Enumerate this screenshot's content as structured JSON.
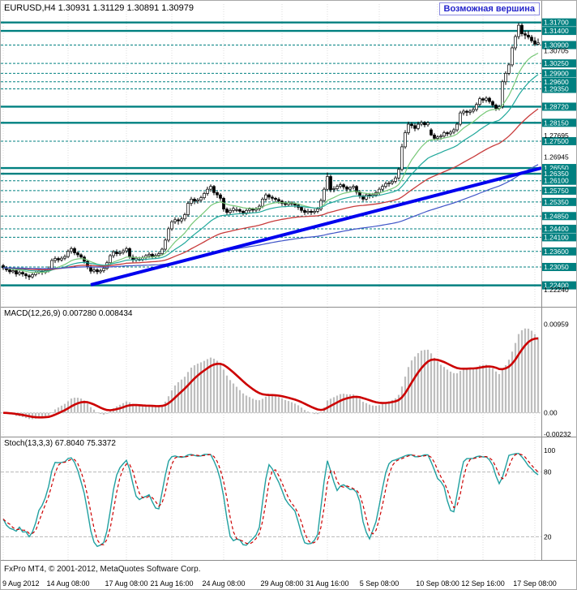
{
  "header": {
    "title": "EURUSD,H4 1.30931 1.31129 1.30891 1.30979"
  },
  "annotation": {
    "text": "Возможная вершина"
  },
  "footer": {
    "copyright": "FxPro MT4, © 2001-2012, MetaQuotes Software Corp."
  },
  "colors": {
    "level": "#008080",
    "bull": "#FFFFFF",
    "bear": "#000000",
    "wick": "#000000",
    "trendline": "#0000EE",
    "macd_hist": "#BEBEBE",
    "macd_signal": "#CC0000",
    "stoch_main": "#20A0A0",
    "stoch_signal": "#CC0000",
    "grid": "#DCDCDC",
    "annotation": "#2424CC"
  },
  "chart_data": {
    "type": "candlestick",
    "title": "EURUSD,H4",
    "symbol": "EURUSD",
    "timeframe": "H4",
    "time_ticks": [
      {
        "text": "9 Aug 2012",
        "bar": 0
      },
      {
        "text": "14 Aug 08:00",
        "bar": 20
      },
      {
        "text": "17 Aug 08:00",
        "bar": 38
      },
      {
        "text": "21 Aug 16:00",
        "bar": 52
      },
      {
        "text": "24 Aug 08:00",
        "bar": 68
      },
      {
        "text": "29 Aug 08:00",
        "bar": 86
      },
      {
        "text": "31 Aug 16:00",
        "bar": 100
      },
      {
        "text": "5 Sep 08:00",
        "bar": 116
      },
      {
        "text": "10 Sep 08:00",
        "bar": 134
      },
      {
        "text": "12 Sep 16:00",
        "bar": 148
      },
      {
        "text": "17 Sep 08:00",
        "bar": 164
      }
    ],
    "main": {
      "ylim": [
        1.217,
        1.3235
      ],
      "axis_ticks": [
        1.30705,
        1.27695,
        1.26945,
        1.2224
      ],
      "levels_solid": [
        1.317,
        1.314,
        1.2872,
        1.2815,
        1.2655,
        1.2635,
        1.224
      ],
      "levels_dashed": [
        1.309,
        1.3025,
        1.299,
        1.296,
        1.2935,
        1.275,
        1.261,
        1.2575,
        1.2535,
        1.2485,
        1.244,
        1.241,
        1.236,
        1.2305
      ],
      "trendline": {
        "bar1": 27,
        "price1": 1.2242,
        "bar2": 167,
        "price2": 1.2658
      },
      "moving_averages": [
        {
          "period": 13,
          "color": "#78C878",
          "width": 1.2
        },
        {
          "period": 26,
          "color": "#20A89B",
          "width": 1.2
        },
        {
          "period": 55,
          "color": "#C83C3C",
          "width": 1.3
        },
        {
          "period": 144,
          "color": "#4055C8",
          "width": 1.2
        }
      ],
      "ohlc": [
        [
          1.231,
          1.2316,
          1.2294,
          1.2302
        ],
        [
          1.2302,
          1.2308,
          1.2288,
          1.2295
        ],
        [
          1.2295,
          1.2301,
          1.228,
          1.2288
        ],
        [
          1.2288,
          1.2298,
          1.2282,
          1.2292
        ],
        [
          1.2292,
          1.2296,
          1.2271,
          1.228
        ],
        [
          1.228,
          1.2292,
          1.2274,
          1.2286
        ],
        [
          1.2286,
          1.2291,
          1.2271,
          1.228
        ],
        [
          1.228,
          1.2285,
          1.2263,
          1.2274
        ],
        [
          1.2274,
          1.228,
          1.2259,
          1.227
        ],
        [
          1.227,
          1.2285,
          1.2264,
          1.2278
        ],
        [
          1.2278,
          1.2292,
          1.2272,
          1.2285
        ],
        [
          1.2285,
          1.2297,
          1.2279,
          1.229
        ],
        [
          1.229,
          1.2296,
          1.2277,
          1.2286
        ],
        [
          1.2286,
          1.2299,
          1.228,
          1.2292
        ],
        [
          1.2292,
          1.2307,
          1.2286,
          1.23
        ],
        [
          1.23,
          1.2335,
          1.2295,
          1.2328
        ],
        [
          1.2328,
          1.2343,
          1.2319,
          1.2335
        ],
        [
          1.2335,
          1.2341,
          1.2321,
          1.233
        ],
        [
          1.233,
          1.2343,
          1.2324,
          1.2336
        ],
        [
          1.2336,
          1.2349,
          1.2329,
          1.2342
        ],
        [
          1.2342,
          1.2367,
          1.2336,
          1.236
        ],
        [
          1.236,
          1.2377,
          1.2352,
          1.237
        ],
        [
          1.237,
          1.2376,
          1.2347,
          1.2355
        ],
        [
          1.2355,
          1.2361,
          1.2339,
          1.2348
        ],
        [
          1.2348,
          1.2353,
          1.2333,
          1.234
        ],
        [
          1.234,
          1.2346,
          1.2317,
          1.2325
        ],
        [
          1.2325,
          1.2331,
          1.2297,
          1.2305
        ],
        [
          1.2305,
          1.2313,
          1.2281,
          1.229
        ],
        [
          1.229,
          1.2303,
          1.2283,
          1.2295
        ],
        [
          1.2295,
          1.2301,
          1.2279,
          1.2288
        ],
        [
          1.2288,
          1.2299,
          1.2281,
          1.2292
        ],
        [
          1.2292,
          1.2307,
          1.2285,
          1.23
        ],
        [
          1.23,
          1.2327,
          1.2294,
          1.232
        ],
        [
          1.232,
          1.2351,
          1.2313,
          1.2345
        ],
        [
          1.2345,
          1.2365,
          1.2337,
          1.2358
        ],
        [
          1.2358,
          1.2367,
          1.2343,
          1.2352
        ],
        [
          1.2352,
          1.2363,
          1.2345,
          1.2356
        ],
        [
          1.2356,
          1.2369,
          1.2349,
          1.2362
        ],
        [
          1.2362,
          1.2377,
          1.2354,
          1.237
        ],
        [
          1.237,
          1.2375,
          1.2334,
          1.234
        ],
        [
          1.234,
          1.2349,
          1.2321,
          1.233
        ],
        [
          1.233,
          1.2343,
          1.2323,
          1.2336
        ],
        [
          1.2332,
          1.2341,
          1.2325,
          1.2332
        ],
        [
          1.2332,
          1.2345,
          1.2325,
          1.2338
        ],
        [
          1.2338,
          1.2351,
          1.2329,
          1.2345
        ],
        [
          1.2345,
          1.2357,
          1.2337,
          1.235
        ],
        [
          1.235,
          1.2355,
          1.2335,
          1.2342
        ],
        [
          1.2342,
          1.2353,
          1.2335,
          1.2346
        ],
        [
          1.2346,
          1.2359,
          1.2339,
          1.2352
        ],
        [
          1.2352,
          1.2373,
          1.2345,
          1.2368
        ],
        [
          1.2368,
          1.2407,
          1.2361,
          1.24
        ],
        [
          1.24,
          1.2447,
          1.2393,
          1.244
        ],
        [
          1.244,
          1.2471,
          1.2433,
          1.2465
        ],
        [
          1.2465,
          1.2481,
          1.2457,
          1.2472
        ],
        [
          1.2472,
          1.2479,
          1.2455,
          1.2468
        ],
        [
          1.2468,
          1.2483,
          1.2459,
          1.2475
        ],
        [
          1.2475,
          1.2497,
          1.2467,
          1.249
        ],
        [
          1.249,
          1.2537,
          1.2483,
          1.253
        ],
        [
          1.253,
          1.2553,
          1.2521,
          1.2545
        ],
        [
          1.2545,
          1.2551,
          1.2527,
          1.2538
        ],
        [
          1.2538,
          1.2549,
          1.2529,
          1.2542
        ],
        [
          1.2542,
          1.2557,
          1.2534,
          1.255
        ],
        [
          1.255,
          1.2571,
          1.2543,
          1.2565
        ],
        [
          1.2565,
          1.2589,
          1.2557,
          1.258
        ],
        [
          1.258,
          1.2597,
          1.2571,
          1.259
        ],
        [
          1.259,
          1.2595,
          1.2559,
          1.2568
        ],
        [
          1.2568,
          1.2573,
          1.2549,
          1.256
        ],
        [
          1.256,
          1.2566,
          1.2539,
          1.2548
        ],
        [
          1.2548,
          1.2553,
          1.2501,
          1.251
        ],
        [
          1.251,
          1.2516,
          1.2489,
          1.2498
        ],
        [
          1.2498,
          1.2513,
          1.2491,
          1.2505
        ],
        [
          1.2505,
          1.2519,
          1.2497,
          1.2512
        ],
        [
          1.2508,
          1.2517,
          1.2499,
          1.2508
        ],
        [
          1.2508,
          1.2513,
          1.2493,
          1.2502
        ],
        [
          1.2502,
          1.2507,
          1.2487,
          1.2496
        ],
        [
          1.2496,
          1.2511,
          1.2489,
          1.2505
        ],
        [
          1.2505,
          1.2516,
          1.2497,
          1.251
        ],
        [
          1.251,
          1.2515,
          1.2497,
          1.2506
        ],
        [
          1.2506,
          1.2517,
          1.2499,
          1.251
        ],
        [
          1.251,
          1.2527,
          1.2503,
          1.252
        ],
        [
          1.252,
          1.2551,
          1.2513,
          1.2545
        ],
        [
          1.2545,
          1.2567,
          1.2537,
          1.256
        ],
        [
          1.256,
          1.2565,
          1.2543,
          1.2552
        ],
        [
          1.2552,
          1.2559,
          1.2539,
          1.2548
        ],
        [
          1.2548,
          1.2553,
          1.2535,
          1.2544
        ],
        [
          1.2544,
          1.2551,
          1.2529,
          1.2538
        ],
        [
          1.2538,
          1.2543,
          1.2521,
          1.253
        ],
        [
          1.253,
          1.2537,
          1.2517,
          1.2526
        ],
        [
          1.2526,
          1.2539,
          1.2519,
          1.2532
        ],
        [
          1.2532,
          1.2537,
          1.2519,
          1.2528
        ],
        [
          1.2528,
          1.2533,
          1.2515,
          1.2524
        ],
        [
          1.2524,
          1.2529,
          1.2507,
          1.2516
        ],
        [
          1.2516,
          1.2521,
          1.2497,
          1.2505
        ],
        [
          1.2505,
          1.2513,
          1.2489,
          1.2498
        ],
        [
          1.2498,
          1.2511,
          1.2491,
          1.2502
        ],
        [
          1.2502,
          1.2509,
          1.2489,
          1.2498
        ],
        [
          1.2498,
          1.2511,
          1.2491,
          1.2502
        ],
        [
          1.2502,
          1.2517,
          1.2495,
          1.251
        ],
        [
          1.251,
          1.2547,
          1.2503,
          1.254
        ],
        [
          1.254,
          1.2587,
          1.2533,
          1.258
        ],
        [
          1.258,
          1.2639,
          1.2573,
          1.2625
        ],
        [
          1.2625,
          1.2631,
          1.2569,
          1.2578
        ],
        [
          1.2582,
          1.2591,
          1.2569,
          1.2582
        ],
        [
          1.2582,
          1.2597,
          1.2575,
          1.259
        ],
        [
          1.259,
          1.2603,
          1.2583,
          1.2596
        ],
        [
          1.2596,
          1.2601,
          1.2579,
          1.2588
        ],
        [
          1.2588,
          1.2593,
          1.2571,
          1.258
        ],
        [
          1.258,
          1.2591,
          1.2573,
          1.2586
        ],
        [
          1.2586,
          1.2597,
          1.2579,
          1.259
        ],
        [
          1.259,
          1.2595,
          1.2561,
          1.257
        ],
        [
          1.257,
          1.2577,
          1.2547,
          1.2555
        ],
        [
          1.2555,
          1.2561,
          1.2537,
          1.2545
        ],
        [
          1.2545,
          1.2566,
          1.2539,
          1.256
        ],
        [
          1.256,
          1.2567,
          1.2547,
          1.2556
        ],
        [
          1.2556,
          1.2567,
          1.2549,
          1.256
        ],
        [
          1.256,
          1.2575,
          1.2553,
          1.2568
        ],
        [
          1.2568,
          1.2587,
          1.2559,
          1.258
        ],
        [
          1.258,
          1.2597,
          1.2573,
          1.259
        ],
        [
          1.259,
          1.2607,
          1.2583,
          1.26
        ],
        [
          1.26,
          1.2609,
          1.2589,
          1.2602
        ],
        [
          1.2602,
          1.2615,
          1.2595,
          1.2608
        ],
        [
          1.2608,
          1.2627,
          1.2601,
          1.262
        ],
        [
          1.262,
          1.2657,
          1.2613,
          1.265
        ],
        [
          1.265,
          1.2741,
          1.2643,
          1.273
        ],
        [
          1.273,
          1.2789,
          1.2723,
          1.278
        ],
        [
          1.278,
          1.2819,
          1.2773,
          1.281
        ],
        [
          1.281,
          1.2817,
          1.2795,
          1.2805
        ],
        [
          1.2805,
          1.2813,
          1.2785,
          1.2795
        ],
        [
          1.2795,
          1.2819,
          1.2789,
          1.281
        ],
        [
          1.281,
          1.2823,
          1.2803,
          1.2816
        ],
        [
          1.2816,
          1.2821,
          1.2799,
          1.2808
        ],
        [
          1.2808,
          1.2821,
          1.2801,
          1.2815
        ],
        [
          1.279,
          1.2796,
          1.2768,
          1.2772
        ],
        [
          1.2772,
          1.2779,
          1.2753,
          1.276
        ],
        [
          1.276,
          1.2771,
          1.2752,
          1.2765
        ],
        [
          1.2765,
          1.2775,
          1.2755,
          1.2768
        ],
        [
          1.2768,
          1.2787,
          1.2761,
          1.278
        ],
        [
          1.278,
          1.2785,
          1.2767,
          1.2776
        ],
        [
          1.2776,
          1.2789,
          1.2769,
          1.2782
        ],
        [
          1.2782,
          1.2797,
          1.2775,
          1.279
        ],
        [
          1.279,
          1.2817,
          1.2783,
          1.281
        ],
        [
          1.281,
          1.2857,
          1.2803,
          1.285
        ],
        [
          1.285,
          1.2863,
          1.2841,
          1.2856
        ],
        [
          1.2856,
          1.2861,
          1.2839,
          1.2852
        ],
        [
          1.2852,
          1.2863,
          1.2843,
          1.2856
        ],
        [
          1.2856,
          1.2869,
          1.2849,
          1.2862
        ],
        [
          1.2862,
          1.2887,
          1.2855,
          1.288
        ],
        [
          1.288,
          1.2907,
          1.2873,
          1.29
        ],
        [
          1.29,
          1.2905,
          1.2885,
          1.2895
        ],
        [
          1.2895,
          1.2909,
          1.2887,
          1.2902
        ],
        [
          1.2902,
          1.2907,
          1.2883,
          1.289
        ],
        [
          1.289,
          1.2895,
          1.2869,
          1.2878
        ],
        [
          1.2878,
          1.2883,
          1.2857,
          1.2866
        ],
        [
          1.2866,
          1.2879,
          1.2859,
          1.2872
        ],
        [
          1.2872,
          1.2967,
          1.2865,
          1.296
        ],
        [
          1.296,
          1.2997,
          1.2949,
          1.299
        ],
        [
          1.299,
          1.3027,
          1.2983,
          1.302
        ],
        [
          1.302,
          1.3087,
          1.3013,
          1.308
        ],
        [
          1.308,
          1.3127,
          1.3071,
          1.312
        ],
        [
          1.312,
          1.3169,
          1.3111,
          1.316
        ],
        [
          1.316,
          1.3167,
          1.3121,
          1.313
        ],
        [
          1.313,
          1.3141,
          1.3111,
          1.3125
        ],
        [
          1.3125,
          1.314,
          1.311,
          1.3118
        ],
        [
          1.3118,
          1.3126,
          1.3098,
          1.3105
        ],
        [
          1.3105,
          1.3118,
          1.3086,
          1.30931
        ],
        [
          1.30931,
          1.31129,
          1.30891,
          1.30979
        ]
      ]
    },
    "macd": {
      "label": "MACD(12,26,9) 0.007280 0.008434",
      "fast": 12,
      "slow": 26,
      "signal_period": 9,
      "value_main": 0.00728,
      "value_signal": 0.008434,
      "ylim": [
        -0.0024,
        0.01
      ],
      "axis_labels": [
        {
          "value": 0.00959,
          "text": "0.00959"
        },
        {
          "value": 0,
          "text": "0.00"
        },
        {
          "value": -0.00232,
          "text": "-0.00232"
        }
      ]
    },
    "stoch": {
      "label": "Stoch(13,3,3) 67.8040 75.3372",
      "k_period": 13,
      "d_period": 3,
      "slowing": 3,
      "value_main": 67.804,
      "value_signal": 75.3372,
      "levels": [
        80,
        20
      ],
      "axis_labels": [
        {
          "value": 100,
          "text": "100"
        },
        {
          "value": 80,
          "text": "80"
        },
        {
          "value": 20,
          "text": "20"
        }
      ]
    }
  }
}
